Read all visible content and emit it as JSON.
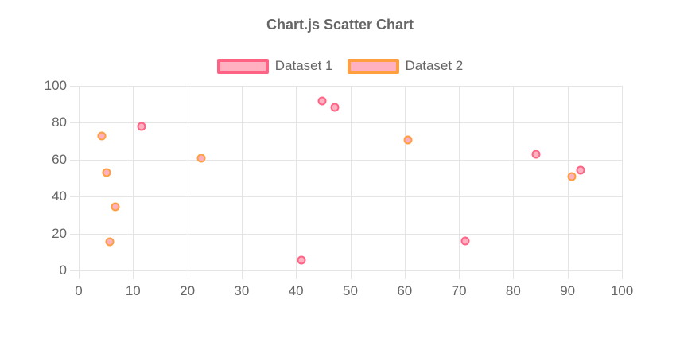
{
  "title": "Chart.js Scatter Chart",
  "colors": {
    "grid": "#e5e5e5",
    "text": "#666666",
    "background": "#ffffff",
    "dataset1_border": "#ff6384",
    "dataset2_border": "#ff9f40",
    "point_fill": "#ffb1c1"
  },
  "chart_data": {
    "type": "scatter",
    "title": "Chart.js Scatter Chart",
    "xlabel": "",
    "ylabel": "",
    "xlim": [
      0,
      100
    ],
    "ylim": [
      0,
      100
    ],
    "x_ticks": [
      0,
      10,
      20,
      30,
      40,
      50,
      60,
      70,
      80,
      90,
      100
    ],
    "y_ticks": [
      0,
      20,
      40,
      60,
      80,
      100
    ],
    "grid": true,
    "legend_position": "top",
    "series": [
      {
        "name": "Dataset 1",
        "border_color": "#ff6384",
        "fill_color": "#ffb1c1",
        "points": [
          {
            "x": 11.6,
            "y": 78
          },
          {
            "x": 44.8,
            "y": 92
          },
          {
            "x": 47.1,
            "y": 88.5
          },
          {
            "x": 41.0,
            "y": 5.6
          },
          {
            "x": 71.2,
            "y": 16
          },
          {
            "x": 84.2,
            "y": 63
          },
          {
            "x": 92.4,
            "y": 54.5
          }
        ]
      },
      {
        "name": "Dataset 2",
        "border_color": "#ff9f40",
        "fill_color": "#ffb1c1",
        "points": [
          {
            "x": 4.3,
            "y": 73
          },
          {
            "x": 5.1,
            "y": 53.2
          },
          {
            "x": 6.7,
            "y": 34.3
          },
          {
            "x": 5.7,
            "y": 15.5
          },
          {
            "x": 22.5,
            "y": 60.7
          },
          {
            "x": 60.6,
            "y": 70.8
          },
          {
            "x": 90.8,
            "y": 50.8
          }
        ]
      }
    ]
  }
}
